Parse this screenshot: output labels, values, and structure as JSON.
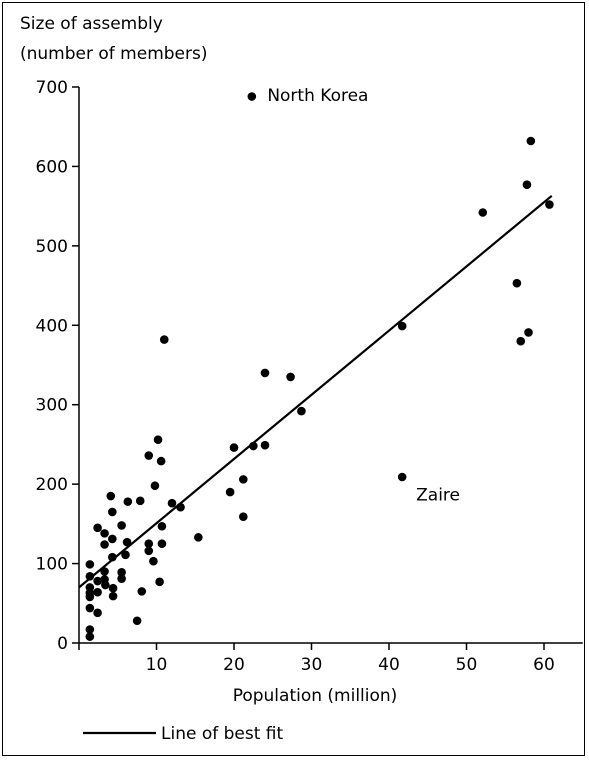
{
  "chart_data": {
    "type": "scatter",
    "ylabel_lines": [
      "Size of assembly",
      "(number of members)"
    ],
    "xlabel": "Population (million)",
    "xlim": [
      0,
      65
    ],
    "ylim": [
      0,
      700
    ],
    "xticks": [
      10,
      20,
      30,
      40,
      50,
      60
    ],
    "yticks": [
      0,
      100,
      200,
      300,
      400,
      500,
      600,
      700
    ],
    "grid": false,
    "legend_position": "bottom-left",
    "legend_label": "Line of best fit",
    "fit_line": {
      "x0": 0,
      "y0": 70,
      "x1": 61,
      "y1": 563
    },
    "points": [
      [
        22.3,
        688
      ],
      [
        58.3,
        632
      ],
      [
        57.8,
        577
      ],
      [
        52.1,
        542
      ],
      [
        60.7,
        552
      ],
      [
        56.5,
        453
      ],
      [
        41.7,
        399
      ],
      [
        57.0,
        380
      ],
      [
        58.0,
        391
      ],
      [
        11.0,
        382
      ],
      [
        24.0,
        340
      ],
      [
        27.3,
        335
      ],
      [
        28.7,
        292
      ],
      [
        10.2,
        256
      ],
      [
        10.6,
        229
      ],
      [
        9.0,
        236
      ],
      [
        9.8,
        198
      ],
      [
        20.0,
        246
      ],
      [
        22.5,
        248
      ],
      [
        24.0,
        249
      ],
      [
        21.2,
        206
      ],
      [
        19.5,
        190
      ],
      [
        21.2,
        159
      ],
      [
        41.7,
        209
      ],
      [
        4.1,
        185
      ],
      [
        6.3,
        178
      ],
      [
        7.9,
        179
      ],
      [
        12.0,
        176
      ],
      [
        13.1,
        171
      ],
      [
        2.4,
        145
      ],
      [
        5.5,
        148
      ],
      [
        3.3,
        138
      ],
      [
        4.3,
        131
      ],
      [
        3.3,
        124
      ],
      [
        6.2,
        127
      ],
      [
        9.0,
        125
      ],
      [
        10.7,
        125
      ],
      [
        10.7,
        147
      ],
      [
        15.4,
        133
      ],
      [
        4.3,
        165
      ],
      [
        1.4,
        99
      ],
      [
        4.3,
        108
      ],
      [
        6.0,
        111
      ],
      [
        9.6,
        103
      ],
      [
        9.0,
        116
      ],
      [
        1.4,
        84
      ],
      [
        2.4,
        78
      ],
      [
        3.3,
        90
      ],
      [
        3.3,
        80
      ],
      [
        5.5,
        89
      ],
      [
        5.5,
        81
      ],
      [
        1.4,
        70
      ],
      [
        1.4,
        63
      ],
      [
        1.4,
        58
      ],
      [
        2.4,
        64
      ],
      [
        3.4,
        73
      ],
      [
        4.4,
        69
      ],
      [
        4.4,
        59
      ],
      [
        8.1,
        65
      ],
      [
        10.4,
        77
      ],
      [
        1.4,
        44
      ],
      [
        2.4,
        38
      ],
      [
        7.5,
        28
      ],
      [
        1.4,
        17
      ],
      [
        1.4,
        8
      ]
    ],
    "annotations": [
      {
        "text": "North Korea",
        "x": 24.3,
        "y": 690
      },
      {
        "text": "Zaire",
        "x": 43.5,
        "y": 187
      }
    ]
  }
}
